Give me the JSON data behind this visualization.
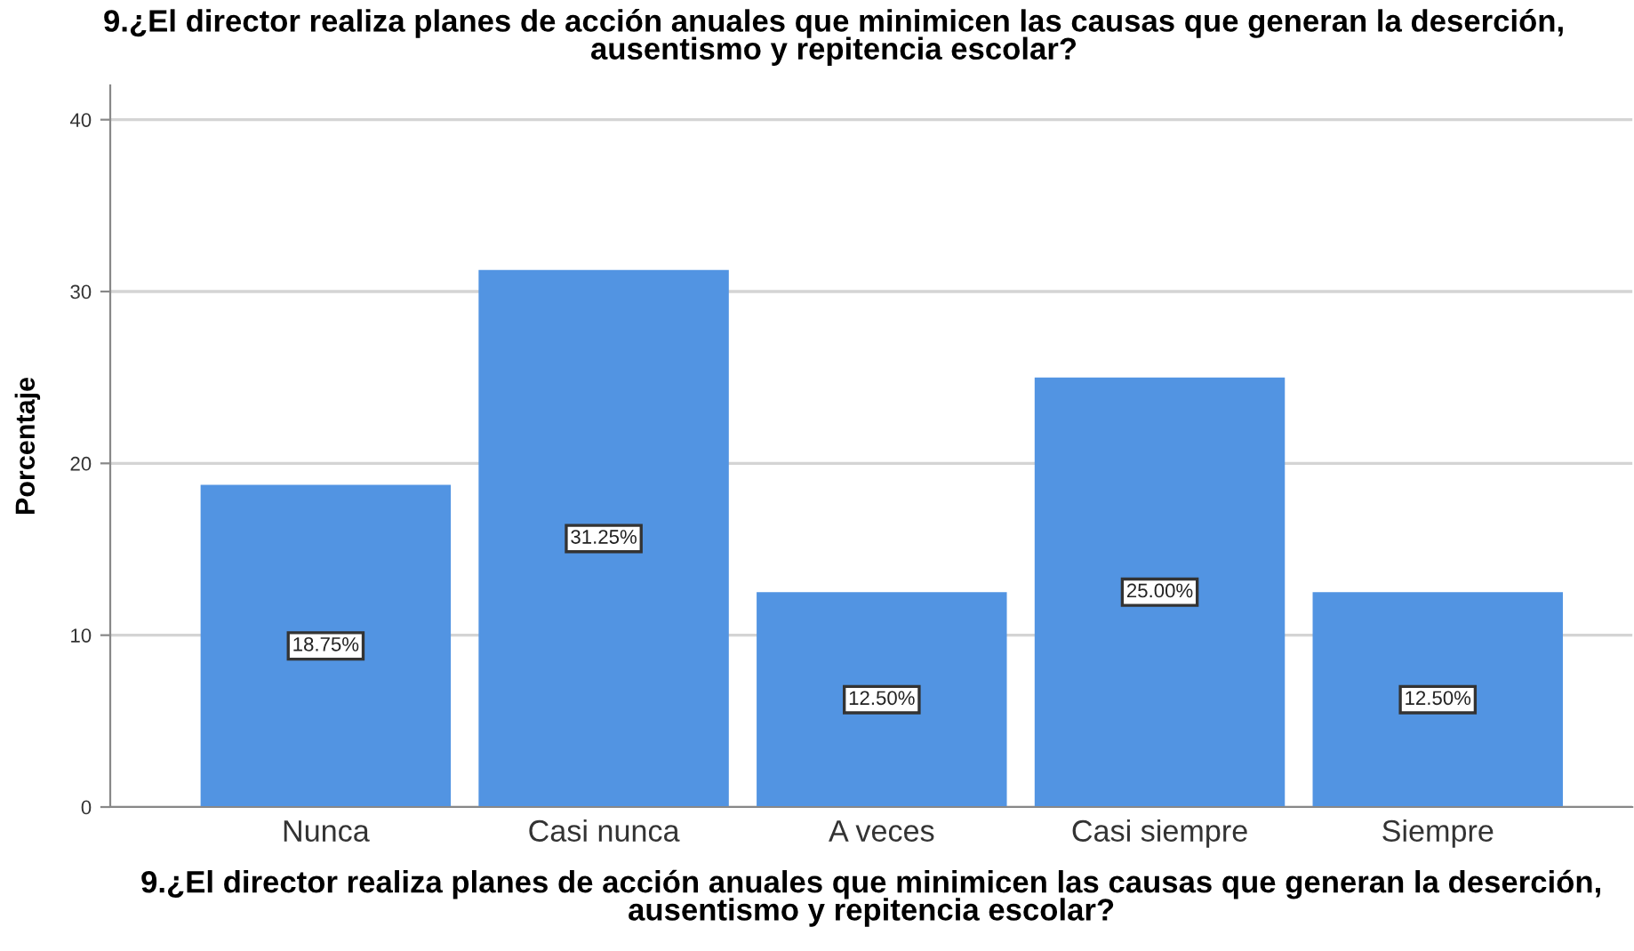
{
  "chart_data": {
    "type": "bar",
    "title": "9.¿El director realiza planes de acción anuales que minimicen las causas que generan la deserción,\nausentismo y repitencia escolar?",
    "xlabel": "9.¿El director realiza planes de acción anuales que minimicen las causas que generan la deserción,\nausentismo y repitencia escolar?",
    "ylabel": "Porcentaje",
    "categories": [
      "Nunca",
      "Casi nunca",
      "A veces",
      "Casi siempre",
      "Siempre"
    ],
    "values": [
      18.75,
      31.25,
      12.5,
      25.0,
      12.5
    ],
    "value_labels": [
      "18.75%",
      "31.25%",
      "12.50%",
      "25.00%",
      "12.50%"
    ],
    "color": "#5294e2",
    "ylim": [
      0,
      42
    ],
    "yticks": [
      0,
      10,
      20,
      30,
      40
    ],
    "grid": "y",
    "legend": false
  }
}
